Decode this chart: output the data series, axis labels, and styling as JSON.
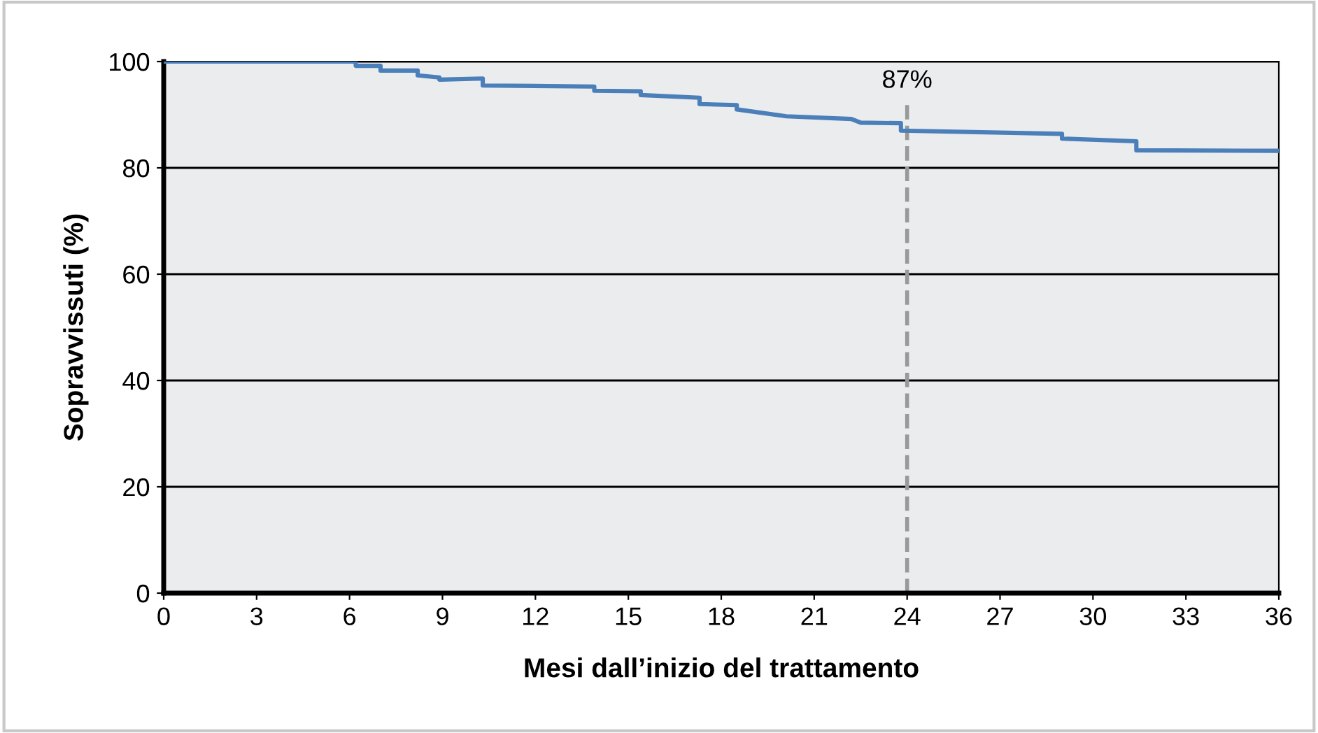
{
  "chart_data": {
    "type": "line",
    "xlabel": "Mesi dall’inizio del trattamento",
    "ylabel": "Sopravvissuti (%)",
    "series": [
      {
        "color": "#4a7fba",
        "x": [
          0,
          6.2,
          6.2,
          7.0,
          7.0,
          8.2,
          8.2,
          8.9,
          8.9,
          10.3,
          10.3,
          13.9,
          13.9,
          15.4,
          15.4,
          17.3,
          17.3,
          18.5,
          18.5,
          20.1,
          22.2,
          22.5,
          23.8,
          23.8,
          29.0,
          29.0,
          31.4,
          31.4,
          36
        ],
        "values": [
          100,
          100,
          99.2,
          99.2,
          98.3,
          98.3,
          97.4,
          97.0,
          96.6,
          96.8,
          95.5,
          95.3,
          94.5,
          94.4,
          93.7,
          93.2,
          92.0,
          91.8,
          91.0,
          89.7,
          89.2,
          88.5,
          88.4,
          87.0,
          86.4,
          85.5,
          85.0,
          83.3,
          83.2
        ]
      }
    ],
    "xlim": [
      0,
      36
    ],
    "xticks": [
      0,
      3,
      6,
      9,
      12,
      15,
      18,
      21,
      24,
      27,
      30,
      33,
      36
    ],
    "ylim": [
      0,
      100
    ],
    "yticks": [
      0,
      20,
      40,
      60,
      80,
      100
    ],
    "grid": "y",
    "legend": false,
    "marker": "none",
    "line_style": "solid",
    "annotations": [
      "87%"
    ],
    "ref_lines": [
      {
        "axis": "x",
        "value": 24,
        "color": "#999999",
        "line_style": "dashed"
      }
    ]
  }
}
